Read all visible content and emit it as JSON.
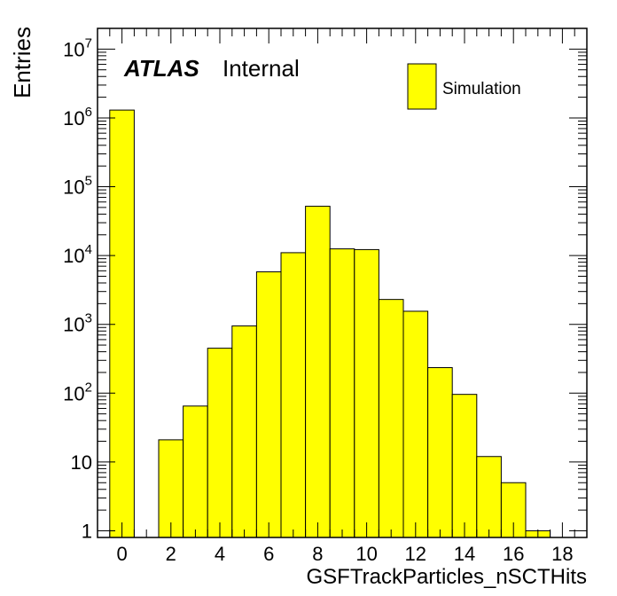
{
  "chart_data": {
    "type": "bar",
    "title": "",
    "xlabel": "GSFTrackParticles_nSCTHits",
    "ylabel": "Entries",
    "y_scale": "log",
    "xlim": [
      -1,
      19
    ],
    "ylim": [
      0.8,
      20000000
    ],
    "bin_width": 1,
    "x": [
      0,
      1,
      2,
      3,
      4,
      5,
      6,
      7,
      8,
      9,
      10,
      11,
      12,
      13,
      14,
      15,
      16,
      17,
      18
    ],
    "series": [
      {
        "name": "Simulation",
        "values": [
          1300000,
          0,
          21,
          65,
          450,
          950,
          5800,
          11000,
          52000,
          12500,
          12200,
          2300,
          1550,
          235,
          96,
          12,
          5,
          1,
          0
        ]
      }
    ],
    "x_ticks": [
      "0",
      "2",
      "4",
      "6",
      "8",
      "10",
      "12",
      "14",
      "16",
      "18"
    ],
    "grid": false,
    "legend_position": "top-right",
    "colors": {
      "fill": "#ffff00",
      "stroke": "#000000"
    }
  },
  "labels": {
    "atlas": "ATLAS",
    "internal": "Internal",
    "legend_entry": "Simulation"
  }
}
